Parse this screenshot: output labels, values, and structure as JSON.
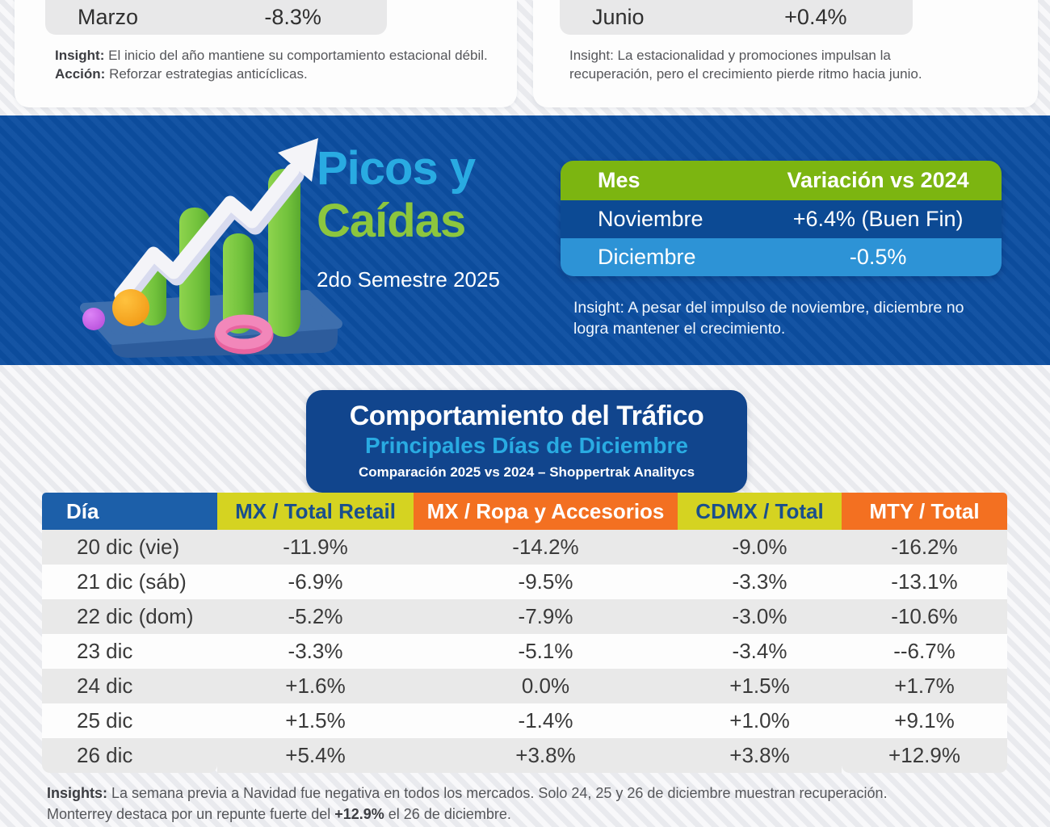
{
  "top_left": {
    "row": {
      "label": "Marzo",
      "value": "-8.3%"
    },
    "insight_bold": "Insight:",
    "insight_text": " El inicio del año mantiene su comportamiento estacional débil.",
    "action_bold": "Acción:",
    "action_text": " Reforzar estrategias anticíclicas."
  },
  "top_right": {
    "row": {
      "label": "Junio",
      "value": "+0.4%"
    },
    "insight_text": "Insight: La estacionalidad y promociones impulsan la recuperación, pero el crecimiento pierde ritmo hacia junio."
  },
  "banner": {
    "title_line1": "Picos y",
    "title_line2": "Caídas",
    "subtitle": "2do Semestre 2025",
    "table": {
      "headers": [
        "Mes",
        "Variación vs 2024"
      ],
      "rows": [
        [
          "Noviembre",
          "+6.4% (Buen Fin)"
        ],
        [
          "Diciembre",
          "-0.5%"
        ]
      ]
    },
    "insight": "Insight: A pesar del impulso de noviembre, diciembre no logra mantener el crecimiento."
  },
  "traffic": {
    "title": "Comportamiento del Tráfico",
    "subtitle": "Principales Días de Diciembre",
    "source": "Comparación 2025 vs 2024 – Shoppertrak Analitycs",
    "headers": [
      "Día",
      "MX / Total Retail",
      "MX / Ropa y Accesorios",
      "CDMX / Total",
      "MTY / Total"
    ],
    "header_styles": [
      "h-blue",
      "h-yellow",
      "h-orange",
      "h-yellow",
      "h-orange"
    ],
    "rows": [
      [
        "20 dic (vie)",
        "-11.9%",
        "-14.2%",
        "-9.0%",
        "-16.2%"
      ],
      [
        "21 dic (sáb)",
        "-6.9%",
        "-9.5%",
        "-3.3%",
        "-13.1%"
      ],
      [
        "22 dic (dom)",
        "-5.2%",
        "-7.9%",
        "-3.0%",
        "-10.6%"
      ],
      [
        "23 dic",
        "-3.3%",
        "-5.1%",
        "-3.4%",
        "--6.7%"
      ],
      [
        "24 dic",
        "+1.6%",
        "0.0%",
        "+1.5%",
        "+1.7%"
      ],
      [
        "25 dic",
        "+1.5%",
        "-1.4%",
        "+1.0%",
        "+9.1%"
      ],
      [
        "26 dic",
        "+5.4%",
        "+3.8%",
        "+3.8%",
        "+12.9%"
      ]
    ]
  },
  "insights": {
    "bold": "Insights:",
    "line1": " La semana previa a Navidad fue negativa en todos los mercados. Solo 24, 25 y 26 de diciembre muestran recuperación.",
    "line2_prefix": "Monterrey destaca por un repunte fuerte del ",
    "line2_bold": "+12.9%",
    "line2_suffix": " el 26 de diciembre."
  },
  "colors": {
    "banner_blue": "#0d4fa1",
    "navy_card": "#11458d",
    "green": "#7cb511",
    "cyan": "#29abe2",
    "title_green": "#8cc63e",
    "row_blue_dark": "#0c4a94",
    "row_blue_light": "#2d93d6",
    "header_yellow": "#d5d321",
    "header_orange": "#f37021",
    "header_blue": "#1c5fa9",
    "zebra_gray": "#e9e9e9",
    "page_bg": "#eff0f3"
  }
}
